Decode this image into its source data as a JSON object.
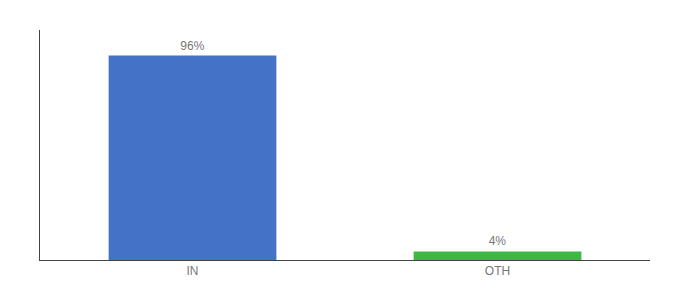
{
  "chart_data": {
    "type": "bar",
    "categories": [
      "IN",
      "OTH"
    ],
    "values": [
      96,
      4
    ],
    "value_labels": [
      "96%",
      "4%"
    ],
    "colors": [
      "#4472c4",
      "#3db843"
    ],
    "ylim": [
      0,
      108
    ],
    "tick_labels": "x",
    "grid": false,
    "data_labels": true
  }
}
